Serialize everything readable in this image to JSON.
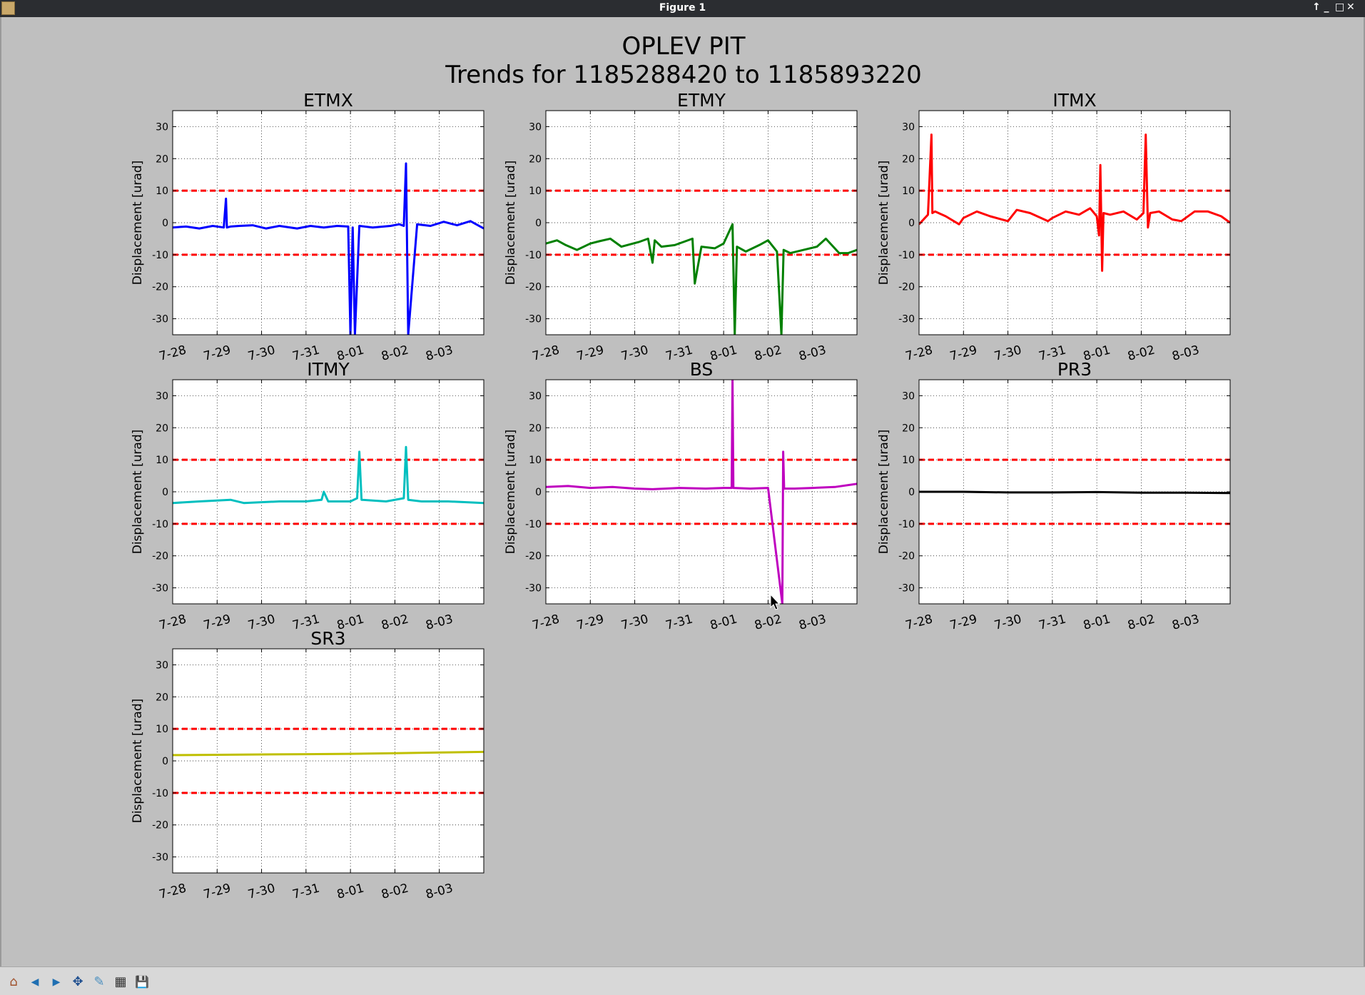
{
  "window": {
    "title": "Figure 1",
    "controls": [
      "↑",
      "_",
      "□",
      "✕"
    ]
  },
  "figure": {
    "suptitle_line1": "OPLEV PIT",
    "suptitle_line2": "Trends for 1185288420 to 1185893220"
  },
  "toolbar": {
    "buttons": [
      {
        "name": "home-icon",
        "glyph": "⌂"
      },
      {
        "name": "back-icon",
        "glyph": "◀"
      },
      {
        "name": "forward-icon",
        "glyph": "▶"
      },
      {
        "name": "pan-icon",
        "glyph": "✥"
      },
      {
        "name": "zoom-icon",
        "glyph": "✎"
      },
      {
        "name": "configure-subplots-icon",
        "glyph": "▦"
      },
      {
        "name": "save-icon",
        "glyph": "💾"
      }
    ]
  },
  "chart_data": [
    {
      "type": "line",
      "title": "ETMX",
      "ylabel": "Displacement [urad]",
      "ylim": [
        -35,
        35
      ],
      "xlim": [
        0,
        7
      ],
      "xticks": [
        0,
        1,
        2,
        3,
        4,
        5,
        6
      ],
      "xticklabels": [
        "7-28",
        "7-29",
        "7-30",
        "7-31",
        "8-01",
        "8-02",
        "8-03"
      ],
      "yticks": [
        -30,
        -20,
        -10,
        0,
        10,
        20,
        30
      ],
      "grid": true,
      "color": "#0000ff",
      "thresholds": {
        "values": [
          10,
          -10
        ],
        "color": "#ff0000",
        "style": "dashed"
      },
      "series": [
        {
          "x": [
            0,
            0.3,
            0.6,
            0.9,
            1.15,
            1.2,
            1.22,
            1.3,
            1.5,
            1.8,
            2.1,
            2.4,
            2.8,
            3.1,
            3.4,
            3.7,
            3.95,
            4.0,
            4.05,
            4.1,
            4.2,
            4.5,
            4.9,
            5.1,
            5.2,
            5.25,
            5.3,
            5.5,
            5.8,
            6.1,
            6.4,
            6.7,
            7.0
          ],
          "y": [
            -1.5,
            -1.2,
            -1.8,
            -1.0,
            -1.5,
            7.5,
            -1.5,
            -1.2,
            -1.0,
            -0.8,
            -1.8,
            -1.0,
            -1.8,
            -1.0,
            -1.5,
            -1.0,
            -1.2,
            -35,
            -1.5,
            -35,
            -1.0,
            -1.5,
            -1.0,
            -0.5,
            -1.0,
            18.5,
            -35,
            -0.5,
            -1.0,
            0.3,
            -0.8,
            0.5,
            -1.8
          ]
        }
      ]
    },
    {
      "type": "line",
      "title": "ETMY",
      "ylabel": "Displacement [urad]",
      "ylim": [
        -35,
        35
      ],
      "xlim": [
        0,
        7
      ],
      "xticks": [
        0,
        1,
        2,
        3,
        4,
        5,
        6
      ],
      "xticklabels": [
        "7-28",
        "7-29",
        "7-30",
        "7-31",
        "8-01",
        "8-02",
        "8-03"
      ],
      "yticks": [
        -30,
        -20,
        -10,
        0,
        10,
        20,
        30
      ],
      "grid": true,
      "color": "#008000",
      "thresholds": {
        "values": [
          10,
          -10
        ],
        "color": "#ff0000",
        "style": "dashed"
      },
      "series": [
        {
          "x": [
            0,
            0.25,
            0.45,
            0.7,
            1.0,
            1.2,
            1.45,
            1.7,
            2.1,
            2.3,
            2.4,
            2.45,
            2.6,
            2.9,
            3.1,
            3.3,
            3.35,
            3.5,
            3.8,
            4.0,
            4.2,
            4.25,
            4.3,
            4.5,
            4.8,
            5.0,
            5.2,
            5.3,
            5.35,
            5.5,
            5.8,
            6.1,
            6.3,
            6.6,
            6.8,
            7.0
          ],
          "y": [
            -6.5,
            -5.5,
            -7.0,
            -8.5,
            -6.5,
            -5.8,
            -5.0,
            -7.5,
            -6.0,
            -5.0,
            -12.5,
            -5.5,
            -7.5,
            -7.0,
            -6.0,
            -5.0,
            -19,
            -7.5,
            -8.0,
            -6.5,
            -0.5,
            -35,
            -7.5,
            -9.0,
            -7.0,
            -5.5,
            -9.0,
            -35,
            -8.5,
            -9.5,
            -8.5,
            -7.5,
            -5.0,
            -9.5,
            -9.5,
            -8.5
          ]
        }
      ]
    },
    {
      "type": "line",
      "title": "ITMX",
      "ylabel": "Displacement [urad]",
      "ylim": [
        -35,
        35
      ],
      "xlim": [
        0,
        7
      ],
      "xticks": [
        0,
        1,
        2,
        3,
        4,
        5,
        6
      ],
      "xticklabels": [
        "7-28",
        "7-29",
        "7-30",
        "7-31",
        "8-01",
        "8-02",
        "8-03"
      ],
      "yticks": [
        -30,
        -20,
        -10,
        0,
        10,
        20,
        30
      ],
      "grid": true,
      "color": "#ff0000",
      "thresholds": {
        "values": [
          10,
          -10
        ],
        "color": "#ff0000",
        "style": "dashed"
      },
      "series": [
        {
          "x": [
            0,
            0.2,
            0.28,
            0.3,
            0.36,
            0.6,
            0.9,
            1.0,
            1.3,
            1.6,
            2.0,
            2.2,
            2.5,
            2.9,
            3.0,
            3.3,
            3.6,
            3.85,
            4.0,
            4.05,
            4.08,
            4.12,
            4.15,
            4.3,
            4.6,
            4.9,
            5.05,
            5.1,
            5.15,
            5.2,
            5.4,
            5.7,
            5.9,
            6.2,
            6.5,
            6.8,
            7.0
          ],
          "y": [
            -0.5,
            2.5,
            27.5,
            3.0,
            3.5,
            2.0,
            -0.5,
            1.5,
            3.5,
            2.0,
            0.5,
            4.0,
            3.0,
            0.5,
            1.5,
            3.5,
            2.5,
            4.5,
            2.0,
            -4.0,
            18.0,
            -15.0,
            3.0,
            2.5,
            3.5,
            1.0,
            3.0,
            27.5,
            -1.5,
            3.0,
            3.5,
            1.0,
            0.5,
            3.5,
            3.5,
            2.0,
            0.0
          ]
        }
      ]
    },
    {
      "type": "line",
      "title": "ITMY",
      "ylabel": "Displacement [urad]",
      "ylim": [
        -35,
        35
      ],
      "xlim": [
        0,
        7
      ],
      "xticks": [
        0,
        1,
        2,
        3,
        4,
        5,
        6
      ],
      "xticklabels": [
        "7-28",
        "7-29",
        "7-30",
        "7-31",
        "8-01",
        "8-02",
        "8-03"
      ],
      "yticks": [
        -30,
        -20,
        -10,
        0,
        10,
        20,
        30
      ],
      "grid": true,
      "color": "#00bfbf",
      "thresholds": {
        "values": [
          10,
          -10
        ],
        "color": "#ff0000",
        "style": "dashed"
      },
      "series": [
        {
          "x": [
            0,
            0.6,
            1.3,
            1.6,
            2.4,
            3.0,
            3.35,
            3.4,
            3.5,
            4.0,
            4.15,
            4.2,
            4.25,
            4.8,
            5.2,
            5.25,
            5.3,
            5.6,
            6.2,
            7.0
          ],
          "y": [
            -3.5,
            -3.0,
            -2.5,
            -3.5,
            -3.0,
            -3.0,
            -2.5,
            0.0,
            -3.0,
            -3.0,
            -2.0,
            12.5,
            -2.5,
            -3.0,
            -2.0,
            14.0,
            -2.5,
            -3.0,
            -3.0,
            -3.5
          ]
        }
      ]
    },
    {
      "type": "line",
      "title": "BS",
      "ylabel": "Displacement [urad]",
      "ylim": [
        -35,
        35
      ],
      "xlim": [
        0,
        7
      ],
      "xticks": [
        0,
        1,
        2,
        3,
        4,
        5,
        6
      ],
      "xticklabels": [
        "7-28",
        "7-29",
        "7-30",
        "7-31",
        "8-01",
        "8-02",
        "8-03"
      ],
      "yticks": [
        -30,
        -20,
        -10,
        0,
        10,
        20,
        30
      ],
      "grid": true,
      "color": "#bf00bf",
      "thresholds": {
        "values": [
          10,
          -10
        ],
        "color": "#ff0000",
        "style": "dashed"
      },
      "series": [
        {
          "x": [
            0,
            0.5,
            1.0,
            1.5,
            2.0,
            2.4,
            3.0,
            3.6,
            4.0,
            4.18,
            4.2,
            4.22,
            4.6,
            5.0,
            5.32,
            5.34,
            5.36,
            5.6,
            6.0,
            6.5,
            7.0
          ],
          "y": [
            1.5,
            1.8,
            1.2,
            1.5,
            1.0,
            0.8,
            1.2,
            1.0,
            1.2,
            1.2,
            35,
            1.2,
            1.0,
            1.2,
            -35,
            12.5,
            1.0,
            1.0,
            1.2,
            1.5,
            2.5
          ]
        }
      ]
    },
    {
      "type": "line",
      "title": "PR3",
      "ylabel": "Displacement [urad]",
      "ylim": [
        -35,
        35
      ],
      "xlim": [
        0,
        7
      ],
      "xticks": [
        0,
        1,
        2,
        3,
        4,
        5,
        6
      ],
      "xticklabels": [
        "7-28",
        "7-29",
        "7-30",
        "7-31",
        "8-01",
        "8-02",
        "8-03"
      ],
      "yticks": [
        -30,
        -20,
        -10,
        0,
        10,
        20,
        30
      ],
      "grid": true,
      "color": "#000000",
      "thresholds": {
        "values": [
          10,
          -10
        ],
        "color": "#ff0000",
        "style": "dashed"
      },
      "series": [
        {
          "x": [
            0,
            1,
            2,
            3,
            4,
            5,
            6,
            7
          ],
          "y": [
            0.0,
            0.0,
            -0.2,
            -0.2,
            -0.1,
            -0.3,
            -0.3,
            -0.4
          ]
        }
      ]
    },
    {
      "type": "line",
      "title": "SR3",
      "ylabel": "Displacement [urad]",
      "ylim": [
        -35,
        35
      ],
      "xlim": [
        0,
        7
      ],
      "xticks": [
        0,
        1,
        2,
        3,
        4,
        5,
        6
      ],
      "xticklabels": [
        "7-28",
        "7-29",
        "7-30",
        "7-31",
        "8-01",
        "8-02",
        "8-03"
      ],
      "yticks": [
        -30,
        -20,
        -10,
        0,
        10,
        20,
        30
      ],
      "grid": true,
      "color": "#bfbf00",
      "thresholds": {
        "values": [
          10,
          -10
        ],
        "color": "#ff0000",
        "style": "dashed"
      },
      "series": [
        {
          "x": [
            0,
            1,
            2,
            3,
            4,
            5,
            6,
            7
          ],
          "y": [
            1.8,
            1.9,
            2.0,
            2.1,
            2.2,
            2.4,
            2.6,
            2.8
          ]
        }
      ]
    }
  ]
}
